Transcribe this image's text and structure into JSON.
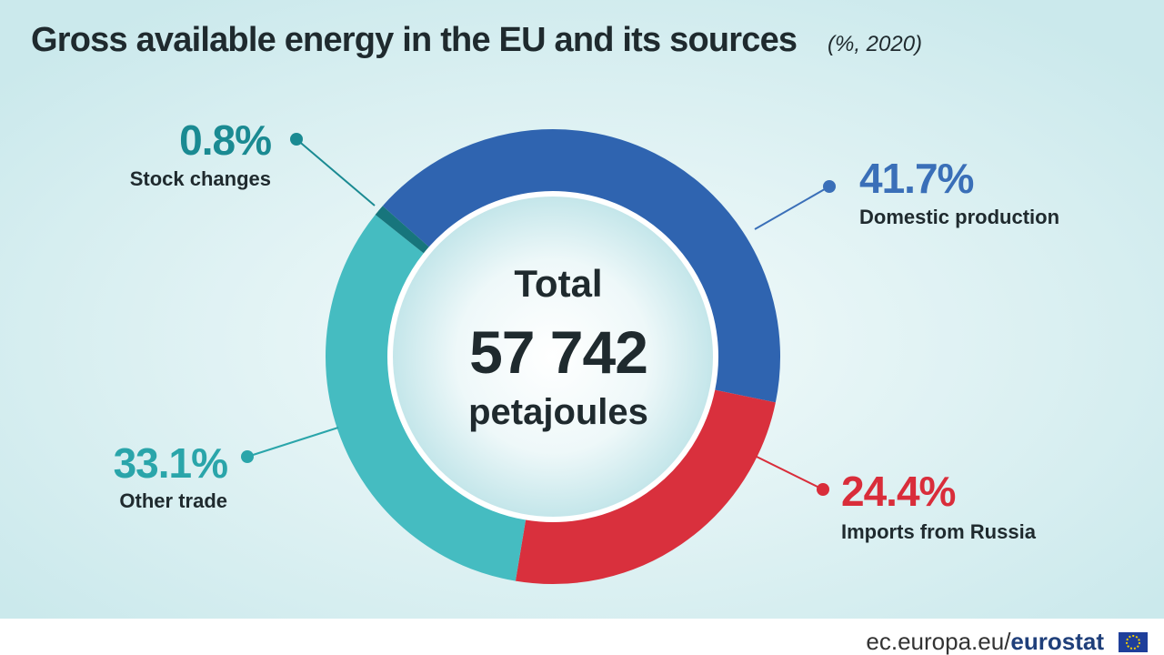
{
  "chart_data": {
    "type": "pie",
    "title": "Gross available energy in the EU and its sources",
    "subtitle": "(%, 2020)",
    "categories": [
      "Domestic production",
      "Imports from Russia",
      "Other trade",
      "Stock changes"
    ],
    "values": [
      41.7,
      24.4,
      33.1,
      0.8
    ],
    "value_labels": [
      "41.7%",
      "24.4%",
      "33.1%",
      "0.8%"
    ],
    "colors": [
      "#2f64b0",
      "#d9303d",
      "#45bcc1",
      "#17757c"
    ],
    "label_colors": [
      "#3a6fb8",
      "#d92d3a",
      "#2aa5aa",
      "#1a8a92"
    ],
    "center": {
      "title": "Total",
      "value": "57 742",
      "unit": "petajoules"
    },
    "source": {
      "site": "ec.europa.eu/",
      "name": "eurostat"
    }
  }
}
